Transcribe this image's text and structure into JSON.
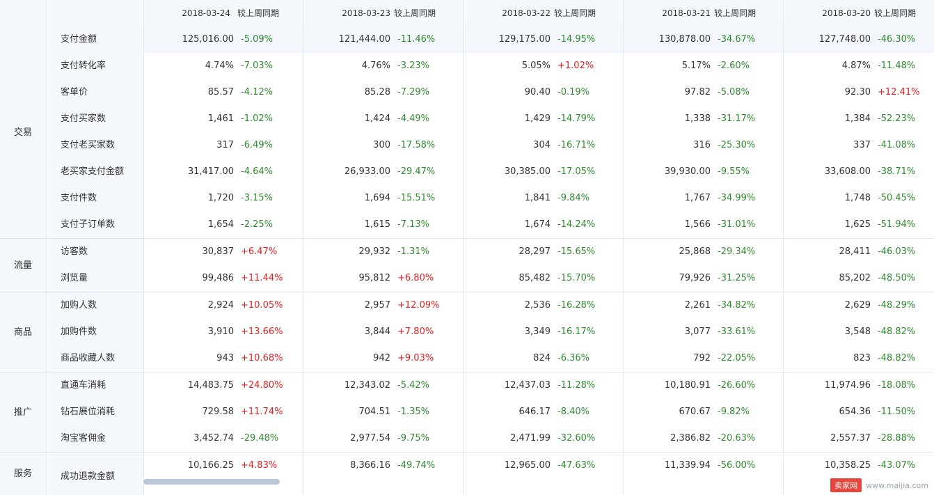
{
  "header": {
    "dates": [
      "2018-03-24",
      "2018-03-23",
      "2018-03-22",
      "2018-03-21",
      "2018-03-20"
    ],
    "compare_label": "较上周同期"
  },
  "categories": [
    {
      "label": "交易",
      "rows": 8
    },
    {
      "label": "流量",
      "rows": 2
    },
    {
      "label": "商品",
      "rows": 3
    },
    {
      "label": "推广",
      "rows": 3
    },
    {
      "label": "服务",
      "rows": 1
    }
  ],
  "rows": [
    {
      "metric": "支付金额",
      "cells": [
        [
          "125,016.00",
          "-5.09%"
        ],
        [
          "121,444.00",
          "-11.46%"
        ],
        [
          "129,175.00",
          "-14.95%"
        ],
        [
          "130,878.00",
          "-34.67%"
        ],
        [
          "127,748.00",
          "-46.30%"
        ]
      ]
    },
    {
      "metric": "支付转化率",
      "cells": [
        [
          "4.74%",
          "-7.03%"
        ],
        [
          "4.76%",
          "-3.23%"
        ],
        [
          "5.05%",
          "+1.02%"
        ],
        [
          "5.17%",
          "-2.60%"
        ],
        [
          "4.87%",
          "-11.48%"
        ]
      ]
    },
    {
      "metric": "客单价",
      "cells": [
        [
          "85.57",
          "-4.12%"
        ],
        [
          "85.28",
          "-7.29%"
        ],
        [
          "90.40",
          "-0.19%"
        ],
        [
          "97.82",
          "-5.08%"
        ],
        [
          "92.30",
          "+12.41%"
        ]
      ]
    },
    {
      "metric": "支付买家数",
      "cells": [
        [
          "1,461",
          "-1.02%"
        ],
        [
          "1,424",
          "-4.49%"
        ],
        [
          "1,429",
          "-14.79%"
        ],
        [
          "1,338",
          "-31.17%"
        ],
        [
          "1,384",
          "-52.23%"
        ]
      ]
    },
    {
      "metric": "支付老买家数",
      "cells": [
        [
          "317",
          "-6.49%"
        ],
        [
          "300",
          "-17.58%"
        ],
        [
          "304",
          "-16.71%"
        ],
        [
          "316",
          "-25.30%"
        ],
        [
          "337",
          "-41.08%"
        ]
      ]
    },
    {
      "metric": "老买家支付金额",
      "cells": [
        [
          "31,417.00",
          "-4.64%"
        ],
        [
          "26,933.00",
          "-29.47%"
        ],
        [
          "30,385.00",
          "-17.05%"
        ],
        [
          "39,930.00",
          "-9.55%"
        ],
        [
          "33,608.00",
          "-38.71%"
        ]
      ]
    },
    {
      "metric": "支付件数",
      "cells": [
        [
          "1,720",
          "-3.15%"
        ],
        [
          "1,694",
          "-15.51%"
        ],
        [
          "1,841",
          "-9.84%"
        ],
        [
          "1,767",
          "-34.99%"
        ],
        [
          "1,748",
          "-50.45%"
        ]
      ]
    },
    {
      "metric": "支付子订单数",
      "cells": [
        [
          "1,654",
          "-2.25%"
        ],
        [
          "1,615",
          "-7.13%"
        ],
        [
          "1,674",
          "-14.24%"
        ],
        [
          "1,566",
          "-31.01%"
        ],
        [
          "1,625",
          "-51.94%"
        ]
      ]
    },
    {
      "metric": "访客数",
      "cells": [
        [
          "30,837",
          "+6.47%"
        ],
        [
          "29,932",
          "-1.31%"
        ],
        [
          "28,297",
          "-15.65%"
        ],
        [
          "25,868",
          "-29.34%"
        ],
        [
          "28,411",
          "-46.03%"
        ]
      ]
    },
    {
      "metric": "浏览量",
      "cells": [
        [
          "99,486",
          "+11.44%"
        ],
        [
          "95,812",
          "+6.80%"
        ],
        [
          "85,482",
          "-15.70%"
        ],
        [
          "79,926",
          "-31.25%"
        ],
        [
          "85,202",
          "-48.50%"
        ]
      ]
    },
    {
      "metric": "加购人数",
      "cells": [
        [
          "2,924",
          "+10.05%"
        ],
        [
          "2,957",
          "+12.09%"
        ],
        [
          "2,536",
          "-16.28%"
        ],
        [
          "2,261",
          "-34.82%"
        ],
        [
          "2,629",
          "-48.29%"
        ]
      ]
    },
    {
      "metric": "加购件数",
      "cells": [
        [
          "3,910",
          "+13.66%"
        ],
        [
          "3,844",
          "+7.80%"
        ],
        [
          "3,349",
          "-16.17%"
        ],
        [
          "3,077",
          "-33.61%"
        ],
        [
          "3,548",
          "-48.82%"
        ]
      ]
    },
    {
      "metric": "商品收藏人数",
      "cells": [
        [
          "943",
          "+10.68%"
        ],
        [
          "942",
          "+9.03%"
        ],
        [
          "824",
          "-6.36%"
        ],
        [
          "792",
          "-22.05%"
        ],
        [
          "823",
          "-48.82%"
        ]
      ]
    },
    {
      "metric": "直通车消耗",
      "cells": [
        [
          "14,483.75",
          "+24.80%"
        ],
        [
          "12,343.02",
          "-5.42%"
        ],
        [
          "12,437.03",
          "-11.28%"
        ],
        [
          "10,180.91",
          "-26.60%"
        ],
        [
          "11,974.96",
          "-18.08%"
        ]
      ]
    },
    {
      "metric": "钻石展位消耗",
      "cells": [
        [
          "729.58",
          "+11.74%"
        ],
        [
          "704.51",
          "-1.35%"
        ],
        [
          "646.17",
          "-8.40%"
        ],
        [
          "670.67",
          "-9.82%"
        ],
        [
          "654.36",
          "-11.50%"
        ]
      ]
    },
    {
      "metric": "淘宝客佣金",
      "cells": [
        [
          "3,452.74",
          "-29.48%"
        ],
        [
          "2,977.54",
          "-9.75%"
        ],
        [
          "2,471.99",
          "-32.60%"
        ],
        [
          "2,386.82",
          "-20.63%"
        ],
        [
          "2,557.37",
          "-28.88%"
        ]
      ]
    },
    {
      "metric": "成功退款金额",
      "cells": [
        [
          "10,166.25",
          "+4.83%"
        ],
        [
          "8,366.16",
          "-49.74%"
        ],
        [
          "12,965.00",
          "-47.63%"
        ],
        [
          "11,339.94",
          "-56.00%"
        ],
        [
          "10,358.25",
          "-43.07%"
        ]
      ]
    }
  ],
  "watermark": {
    "logo": "卖家网",
    "url": "www.maijia.com"
  },
  "colors": {
    "negative": "#2e8b2e",
    "positive": "#e02020",
    "header_bg": "#f5f8fc"
  }
}
